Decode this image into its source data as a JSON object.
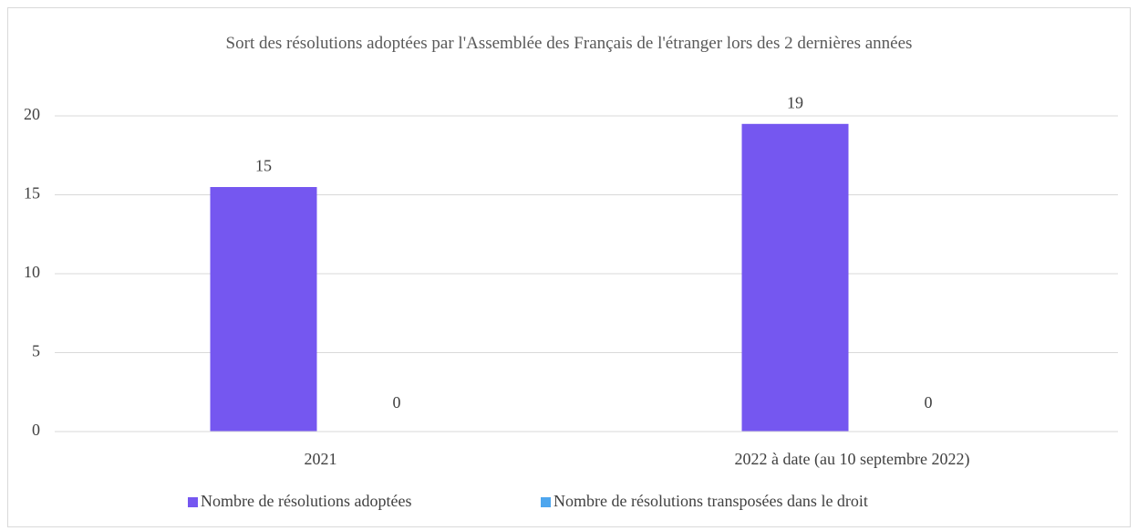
{
  "chart_data": {
    "type": "bar",
    "title": "Sort des résolutions adoptées par l'Assemblée des Français de l'étranger lors des 2 dernières années",
    "categories": [
      "2021",
      "2022 à date (au 10 septembre 2022)"
    ],
    "series": [
      {
        "name": "Nombre de résolutions adoptées",
        "color": "#7557f0",
        "values": [
          15,
          19
        ]
      },
      {
        "name": "Nombre de résolutions transposées dans le droit",
        "color": "#4ea6ee",
        "values": [
          0,
          0
        ]
      }
    ],
    "ylim": [
      0,
      20
    ],
    "yticks": [
      0,
      5,
      10,
      15,
      20
    ],
    "grid": true,
    "legend": "bottom"
  }
}
